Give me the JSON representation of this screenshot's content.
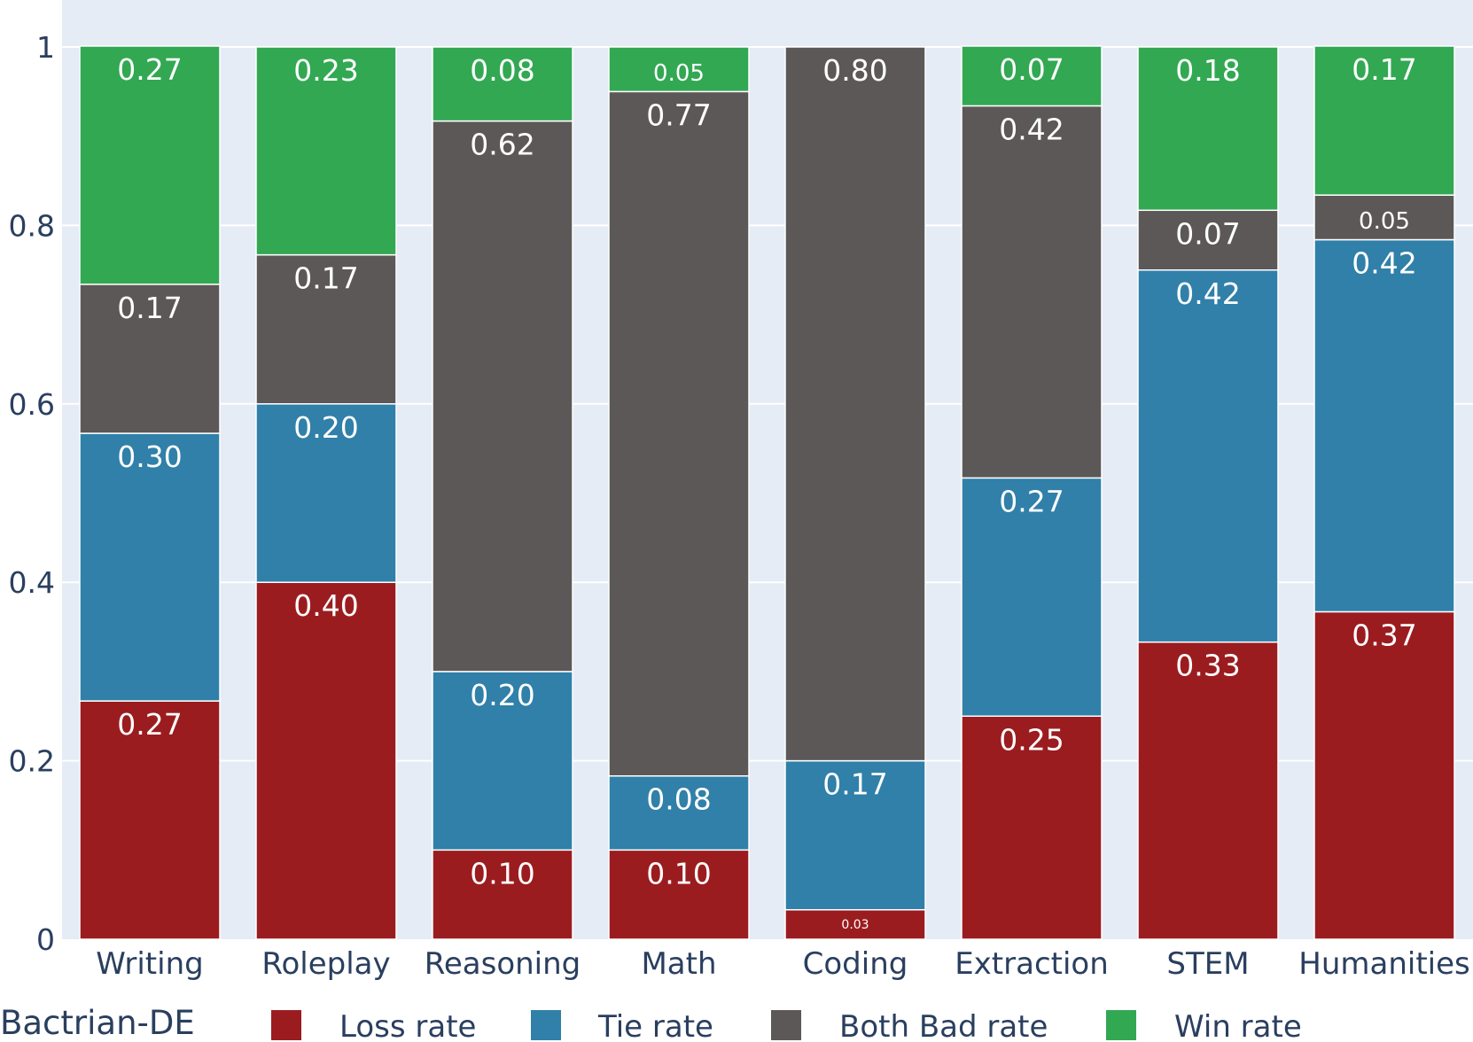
{
  "chart_data": {
    "type": "bar",
    "stacked": true,
    "categories": [
      "Writing",
      "Roleplay",
      "Reasoning",
      "Math",
      "Coding",
      "Extraction",
      "STEM",
      "Humanities"
    ],
    "ylim": [
      0,
      1
    ],
    "yticks": [
      0,
      0.2,
      0.4,
      0.6,
      0.8,
      1
    ],
    "ytick_labels": [
      "0",
      "0.2",
      "0.4",
      "0.6",
      "0.8",
      "1"
    ],
    "grid": true,
    "legend": {
      "title": "Bactrian-DE",
      "placement": "bottom"
    },
    "series": [
      {
        "name": "Loss rate",
        "color": "#9b1c1f",
        "values": [
          0.267,
          0.4,
          0.1,
          0.1,
          0.033,
          0.25,
          0.333,
          0.367
        ],
        "labels": [
          "0.27",
          "0.40",
          "0.10",
          "0.10",
          "0.03",
          "0.25",
          "0.33",
          "0.37"
        ]
      },
      {
        "name": "Tie rate",
        "color": "#3080a9",
        "values": [
          0.3,
          0.2,
          0.2,
          0.083,
          0.167,
          0.267,
          0.417,
          0.417
        ],
        "labels": [
          "0.30",
          "0.20",
          "0.20",
          "0.08",
          "0.17",
          "0.27",
          "0.42",
          "0.42"
        ]
      },
      {
        "name": "Both Bad rate",
        "color": "#5c5858",
        "values": [
          0.167,
          0.167,
          0.617,
          0.767,
          0.8,
          0.417,
          0.067,
          0.05
        ],
        "labels": [
          "0.17",
          "0.17",
          "0.62",
          "0.77",
          "0.80",
          "0.42",
          "0.07",
          "0.05"
        ]
      },
      {
        "name": "Win rate",
        "color": "#32a852",
        "values": [
          0.267,
          0.233,
          0.083,
          0.05,
          0.0,
          0.067,
          0.183,
          0.167
        ],
        "labels": [
          "0.27",
          "0.23",
          "0.08",
          "0.05",
          "",
          "0.07",
          "0.18",
          "0.17"
        ]
      }
    ],
    "plot_background": "#e5ecf6",
    "grid_color": "#ffffff"
  }
}
